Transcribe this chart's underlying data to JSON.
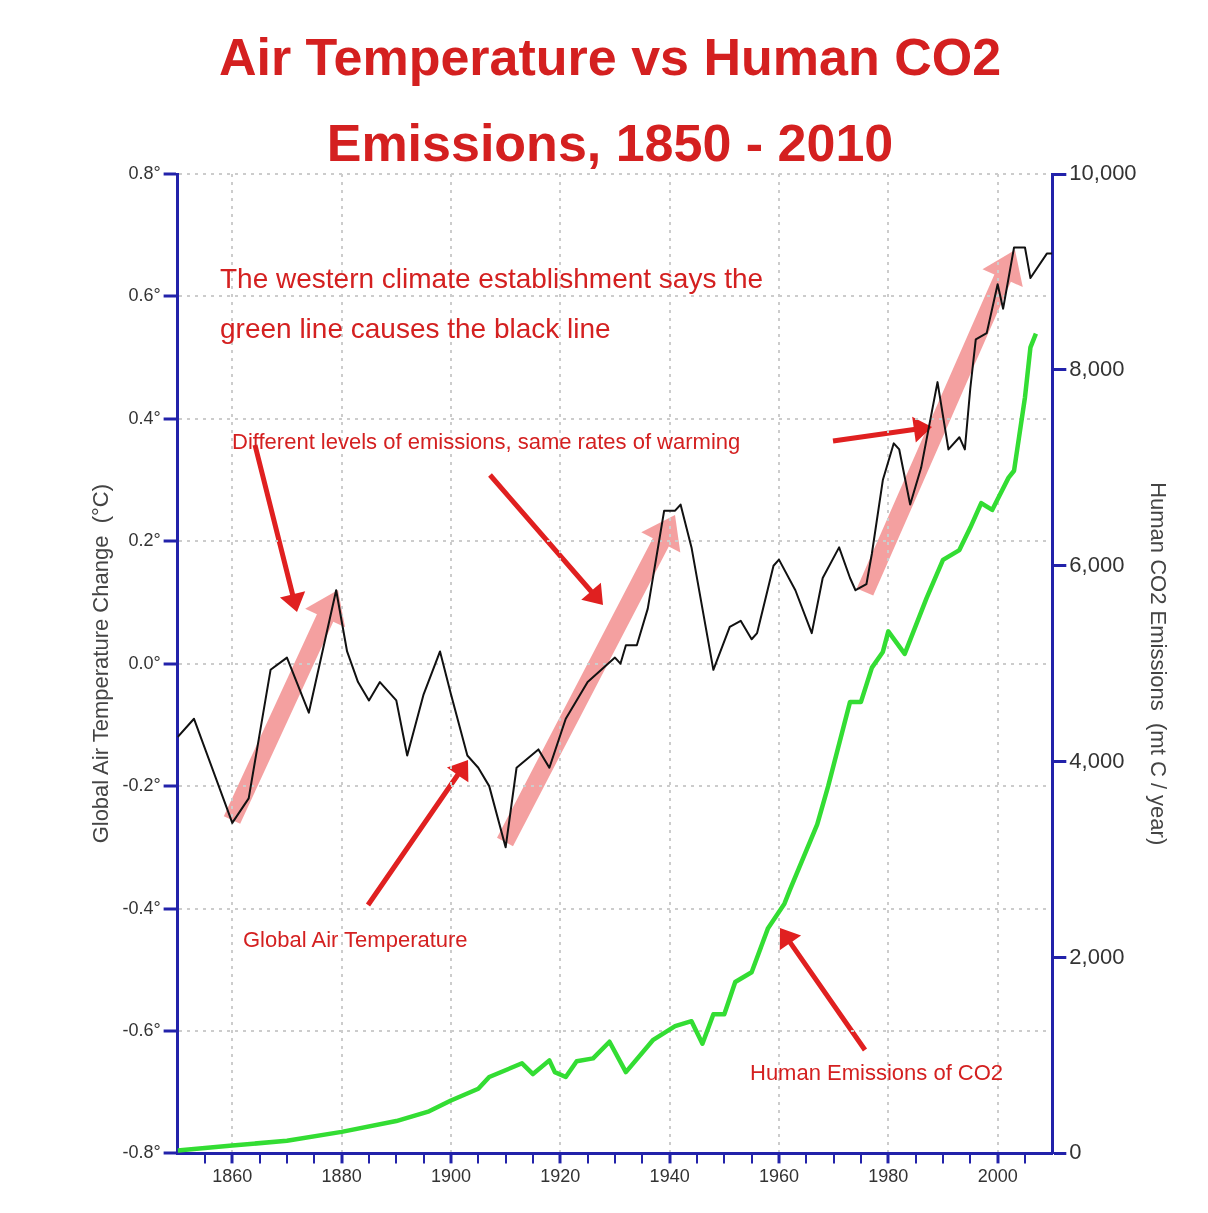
{
  "chart_data": {
    "type": "line",
    "title": "Air Temperature vs Human CO2 Emissions, 1850 - 2010",
    "ylabel": "Global Air Temperature Change  (°C)",
    "y2label": "Human CO2 Emissions  (mt C / year)",
    "annotations": [
      "The western climate establishment says the green line causes the black line",
      "Different levels of emissions, same rates of warming",
      "Global Air Temperature",
      "Human Emissions of CO2"
    ],
    "xlim": [
      1850,
      2010
    ],
    "xticks": [
      {
        "value": 1855,
        "label": null
      },
      1860,
      {
        "value": 1865,
        "label": null
      },
      {
        "value": 1870,
        "label": null
      },
      {
        "value": 1875,
        "label": null
      },
      1880,
      {
        "value": 1885,
        "label": null
      },
      {
        "value": 1890,
        "label": null
      },
      {
        "value": 1895,
        "label": null
      },
      1900,
      {
        "value": 1905,
        "label": null
      },
      {
        "value": 1910,
        "label": null
      },
      {
        "value": 1915,
        "label": null
      },
      1920,
      {
        "value": 1925,
        "label": null
      },
      {
        "value": 1930,
        "label": null
      },
      {
        "value": 1935,
        "label": null
      },
      1940,
      {
        "value": 1945,
        "label": null
      },
      {
        "value": 1950,
        "label": null
      },
      {
        "value": 1955,
        "label": null
      },
      1960,
      {
        "value": 1965,
        "label": null
      },
      {
        "value": 1970,
        "label": null
      },
      {
        "value": 1975,
        "label": null
      },
      1980,
      {
        "value": 1985,
        "label": null
      },
      {
        "value": 1990,
        "label": null
      },
      {
        "value": 1995,
        "label": null
      },
      2000,
      {
        "value": 2005,
        "label": null
      }
    ],
    "ylim": [
      -0.8,
      0.8
    ],
    "yticks": [
      {
        "value": -0.8,
        "label": "-0.8°"
      },
      {
        "value": -0.6,
        "label": "-0.6°"
      },
      {
        "value": -0.4,
        "label": "-0.4°"
      },
      {
        "value": -0.2,
        "label": "-0.2°"
      },
      {
        "value": 0,
        "label": "0.0°"
      },
      {
        "value": 0.2,
        "label": "0.2°"
      },
      {
        "value": 0.4,
        "label": "0.4°"
      },
      {
        "value": 0.6,
        "label": "0.6°"
      },
      {
        "value": 0.8,
        "label": "0.8°"
      }
    ],
    "y2lim": [
      0,
      10000
    ],
    "y2ticks": [
      0,
      {
        "value": 2000,
        "label": "2,000"
      },
      {
        "value": 4000,
        "label": "4,000"
      },
      {
        "value": 6000,
        "label": "6,000"
      },
      {
        "value": 8000,
        "label": "8,000"
      },
      {
        "value": 10000,
        "label": "10,000"
      }
    ],
    "grid": true,
    "marker": "none",
    "series": [
      {
        "color": "#111111",
        "x": [
          1850,
          1853,
          1860,
          1863,
          1867,
          1870,
          1874,
          1879,
          1881,
          1883,
          1885,
          1887,
          1890,
          1892,
          1895,
          1898,
          1900,
          1903,
          1905,
          1907,
          1910,
          1912,
          1916,
          1918,
          1921,
          1925,
          1930,
          1931,
          1932,
          1934,
          1936,
          1939,
          1941,
          1942,
          1944,
          1948,
          1951,
          1953,
          1955,
          1956,
          1959,
          1960,
          1963,
          1966,
          1968,
          1971,
          1973,
          1974,
          1976,
          1977,
          1979,
          1981,
          1982,
          1984,
          1986,
          1989,
          1991,
          1993,
          1994,
          1995,
          1996,
          1998,
          2000,
          2001,
          2003,
          2005,
          2006,
          2009,
          2010
        ],
        "values": [
          -0.12,
          -0.09,
          -0.26,
          -0.22,
          -0.01,
          0.01,
          -0.08,
          0.12,
          0.02,
          -0.03,
          -0.06,
          -0.03,
          -0.06,
          -0.15,
          -0.05,
          0.02,
          -0.05,
          -0.15,
          -0.17,
          -0.2,
          -0.3,
          -0.17,
          -0.14,
          -0.17,
          -0.09,
          -0.03,
          0.01,
          0.0,
          0.03,
          0.03,
          0.09,
          0.25,
          0.25,
          0.26,
          0.19,
          -0.01,
          0.06,
          0.07,
          0.04,
          0.05,
          0.16,
          0.17,
          0.12,
          0.05,
          0.14,
          0.19,
          0.14,
          0.12,
          0.13,
          0.18,
          0.3,
          0.36,
          0.35,
          0.26,
          0.32,
          0.46,
          0.35,
          0.37,
          0.35,
          0.45,
          0.53,
          0.54,
          0.62,
          0.58,
          0.68,
          0.68,
          0.63,
          0.67,
          0.67
        ]
      },
      {
        "color": "#33dd33",
        "axis": "y2",
        "x": [
          1850,
          1860,
          1870,
          1880,
          1890,
          1896,
          1900,
          1905,
          1907,
          1913,
          1915,
          1918,
          1919,
          1921,
          1923,
          1926,
          1929,
          1932,
          1937,
          1941,
          1944,
          1946,
          1948,
          1950,
          1952,
          1955,
          1958,
          1961,
          1962,
          1967,
          1969,
          1973,
          1975,
          1977,
          1979,
          1980,
          1983,
          1987,
          1990,
          1993,
          1995,
          1997,
          1999,
          2002,
          2003,
          2005,
          2006,
          2007
        ],
        "values": [
          30,
          80,
          130,
          220,
          330,
          430,
          540,
          660,
          780,
          920,
          810,
          950,
          830,
          780,
          940,
          970,
          1140,
          830,
          1160,
          1300,
          1350,
          1120,
          1420,
          1420,
          1750,
          1850,
          2300,
          2550,
          2690,
          3360,
          3750,
          4610,
          4610,
          4960,
          5120,
          5330,
          5100,
          5670,
          6060,
          6160,
          6390,
          6640,
          6570,
          6900,
          6970,
          7720,
          8230,
          8370
        ]
      }
    ]
  }
}
